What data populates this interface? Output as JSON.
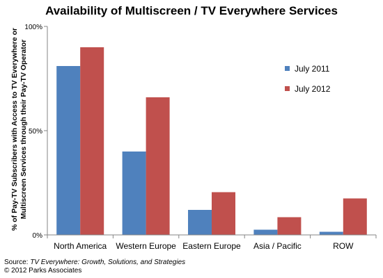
{
  "chart_data": {
    "type": "bar",
    "title": "Availability of Multiscreen / TV Everywhere Services",
    "ylabel_lines": [
      "% of Pay-TV Subscribers with Access to TV Everywhere or",
      "Multiscreen Services through their Pay-TV Operator"
    ],
    "xlabel": "",
    "categories": [
      "North America",
      "Western Europe",
      "Eastern Europe",
      "Asia / Pacific",
      "ROW"
    ],
    "series": [
      {
        "name": "July 2011",
        "color": "#4f81bd",
        "values": [
          81,
          40,
          12,
          2.5,
          1.5
        ]
      },
      {
        "name": "July 2012",
        "color": "#c0504d",
        "values": [
          90,
          66,
          20.5,
          8.5,
          17.5
        ]
      }
    ],
    "ylim": [
      0,
      100
    ],
    "yticks": [
      0,
      50,
      100
    ],
    "ytick_labels": [
      "0%",
      "50%",
      "100%"
    ],
    "grid": false,
    "legend_position": "right"
  },
  "source": {
    "prefix": "Source: ",
    "title": "TV Everywhere: Growth, Solutions, and Strategies",
    "copyright": "© 2012 Parks Associates"
  }
}
